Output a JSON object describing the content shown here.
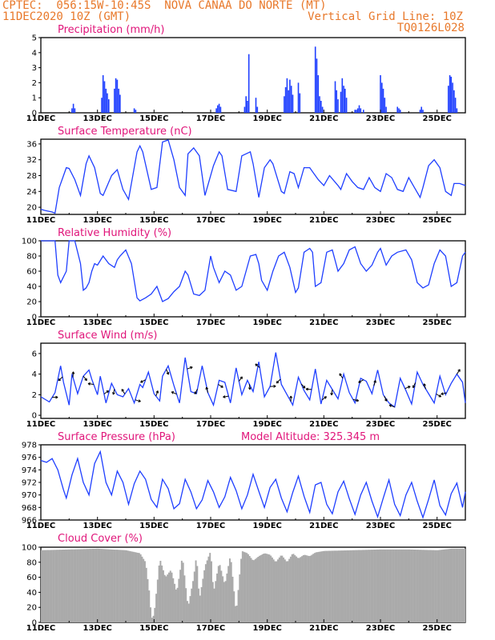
{
  "header": {
    "left_line1": "CPTEC:  056:15W-10:45S  NOVA CANAA DO NORTE (MT)",
    "left_line2": "11DEC2020 10Z (GMT)",
    "right_line2": "Vertical Grid Line: 10Z",
    "right_line3": "TQ0126L028"
  },
  "colors": {
    "header": "#e8782a",
    "title": "#e0157a",
    "series": "#1f3fff",
    "cloud": "#aaaaaa",
    "axis": "#000000"
  },
  "chart_data": [
    {
      "type": "bar",
      "title": "Precipitation (mm/h)",
      "x_tick_labels": [
        "11DEC",
        "13DEC",
        "15DEC",
        "17DEC",
        "19DEC",
        "21DEC",
        "23DEC",
        "25DEC"
      ],
      "x_range_days": [
        0,
        15
      ],
      "ylim": [
        0,
        5
      ],
      "y_ticks": [
        0,
        1,
        2,
        3,
        4,
        5
      ],
      "x": [
        1.1,
        1.15,
        1.2,
        2.15,
        2.2,
        2.25,
        2.3,
        2.35,
        2.4,
        2.6,
        2.65,
        2.7,
        2.75,
        2.8,
        3.3,
        3.35,
        6.2,
        6.25,
        6.3,
        6.35,
        7.2,
        7.25,
        7.3,
        7.35,
        7.6,
        7.65,
        8.6,
        8.65,
        8.7,
        8.75,
        8.8,
        8.85,
        8.9,
        9.1,
        9.15,
        9.7,
        9.75,
        9.8,
        9.85,
        9.9,
        9.95,
        10.4,
        10.45,
        10.5,
        10.6,
        10.65,
        10.7,
        10.75,
        10.8,
        11.1,
        11.15,
        11.2,
        11.25,
        11.3,
        11.4,
        12.0,
        12.05,
        12.1,
        12.15,
        12.2,
        12.6,
        12.65,
        12.7,
        13.4,
        13.45,
        13.5,
        14.4,
        14.45,
        14.5,
        14.55,
        14.6,
        14.65,
        14.7
      ],
      "values": [
        0.3,
        0.6,
        0.3,
        1.0,
        2.5,
        2.1,
        1.6,
        1.3,
        0.9,
        1.6,
        2.3,
        2.2,
        1.6,
        1.2,
        0.3,
        0.2,
        0.3,
        0.5,
        0.6,
        0.4,
        0.4,
        1.1,
        0.8,
        3.9,
        1.0,
        0.4,
        1.1,
        1.7,
        2.3,
        1.5,
        2.2,
        1.8,
        1.2,
        2.0,
        1.3,
        4.4,
        3.6,
        2.5,
        1.1,
        0.8,
        0.4,
        2.1,
        1.5,
        0.9,
        1.4,
        2.3,
        1.8,
        1.6,
        1.0,
        0.2,
        0.2,
        0.3,
        0.5,
        0.3,
        0.2,
        2.5,
        2.0,
        1.6,
        1.0,
        0.4,
        0.4,
        0.3,
        0.2,
        0.2,
        0.4,
        0.2,
        1.8,
        2.5,
        2.4,
        2.0,
        1.5,
        1.0,
        0.3
      ]
    },
    {
      "type": "line",
      "title": "Surface Temperature (nC)",
      "x_tick_labels": [
        "11DEC",
        "13DEC",
        "15DEC",
        "17DEC",
        "19DEC",
        "21DEC",
        "23DEC",
        "25DEC"
      ],
      "x_range_days": [
        0,
        15
      ],
      "ylim": [
        18.2,
        37.2
      ],
      "y_ticks": [
        20,
        24,
        28,
        32,
        36
      ],
      "x": [
        0,
        0.15,
        0.4,
        0.5,
        0.65,
        0.9,
        1.0,
        1.2,
        1.4,
        1.6,
        1.7,
        1.9,
        2.1,
        2.2,
        2.5,
        2.7,
        2.9,
        3.1,
        3.4,
        3.5,
        3.6,
        3.9,
        4.1,
        4.3,
        4.5,
        4.7,
        4.9,
        5.1,
        5.2,
        5.4,
        5.6,
        5.8,
        6.1,
        6.3,
        6.4,
        6.6,
        6.9,
        7.1,
        7.4,
        7.5,
        7.7,
        7.9,
        8.1,
        8.2,
        8.5,
        8.6,
        8.8,
        8.95,
        9.1,
        9.3,
        9.5,
        9.6,
        9.8,
        10.0,
        10.2,
        10.5,
        10.6,
        10.8,
        11.0,
        11.2,
        11.4,
        11.6,
        11.8,
        12.0,
        12.2,
        12.4,
        12.6,
        12.8,
        13.0,
        13.2,
        13.4,
        13.5,
        13.7,
        13.9,
        14.1,
        14.3,
        14.5,
        14.6,
        14.8,
        15.0
      ],
      "values": [
        19.5,
        19.2,
        18.8,
        18.5,
        25.0,
        30.0,
        29.8,
        27.0,
        23.0,
        31.0,
        33.0,
        30.0,
        23.5,
        23.0,
        28.0,
        29.5,
        24.5,
        22.0,
        34.0,
        35.5,
        34.0,
        24.5,
        25.0,
        36.5,
        37.0,
        32.0,
        25.0,
        23.0,
        33.5,
        35.0,
        33.0,
        23.0,
        30.5,
        34.0,
        33.0,
        24.5,
        24.0,
        33.0,
        34.0,
        31.0,
        22.5,
        30.0,
        32.0,
        31.0,
        24.0,
        23.5,
        29.0,
        28.5,
        25.0,
        30.0,
        30.0,
        29.0,
        27.0,
        25.5,
        28.0,
        25.5,
        24.5,
        28.5,
        26.5,
        25.0,
        24.5,
        27.5,
        25.0,
        24.0,
        28.5,
        27.5,
        24.5,
        24.0,
        27.5,
        25.0,
        22.5,
        25.0,
        30.5,
        32.0,
        30.0,
        24.0,
        23.0,
        26.0,
        26.0,
        25.5
      ]
    },
    {
      "type": "line",
      "title": "Relative Humidity (%)",
      "x_tick_labels": [
        "11DEC",
        "13DEC",
        "15DEC",
        "17DEC",
        "19DEC",
        "21DEC",
        "23DEC",
        "25DEC"
      ],
      "x_range_days": [
        0,
        15
      ],
      "ylim": [
        0,
        100
      ],
      "y_ticks": [
        0,
        20,
        40,
        60,
        80,
        100
      ],
      "x": [
        0,
        0.5,
        0.6,
        0.7,
        0.9,
        1.0,
        1.2,
        1.4,
        1.5,
        1.6,
        1.7,
        1.8,
        1.9,
        2.0,
        2.2,
        2.4,
        2.6,
        2.7,
        2.8,
        3.0,
        3.2,
        3.4,
        3.5,
        3.7,
        3.9,
        4.1,
        4.3,
        4.5,
        4.7,
        4.9,
        5.1,
        5.2,
        5.4,
        5.6,
        5.8,
        6.0,
        6.1,
        6.3,
        6.5,
        6.7,
        6.9,
        7.1,
        7.4,
        7.6,
        7.7,
        7.8,
        8.0,
        8.2,
        8.4,
        8.6,
        8.8,
        9.0,
        9.1,
        9.3,
        9.5,
        9.6,
        9.7,
        9.9,
        10.1,
        10.3,
        10.5,
        10.7,
        10.9,
        11.1,
        11.3,
        11.5,
        11.7,
        11.9,
        12.0,
        12.2,
        12.4,
        12.6,
        12.9,
        13.1,
        13.3,
        13.5,
        13.7,
        13.9,
        14.1,
        14.3,
        14.5,
        14.7,
        14.9,
        15.0
      ],
      "values": [
        100,
        100,
        55,
        45,
        60,
        100,
        100,
        70,
        35,
        38,
        45,
        60,
        70,
        68,
        80,
        70,
        65,
        75,
        80,
        88,
        70,
        25,
        21,
        25,
        30,
        40,
        20,
        24,
        33,
        40,
        60,
        55,
        30,
        28,
        35,
        80,
        65,
        45,
        60,
        55,
        35,
        40,
        80,
        82,
        70,
        48,
        35,
        60,
        80,
        85,
        65,
        32,
        38,
        85,
        90,
        85,
        40,
        45,
        85,
        88,
        60,
        70,
        88,
        92,
        70,
        60,
        68,
        85,
        90,
        68,
        80,
        85,
        88,
        75,
        45,
        38,
        42,
        70,
        88,
        80,
        40,
        45,
        80,
        85
      ]
    },
    {
      "type": "line",
      "title": "Surface Wind (m/s)",
      "x_tick_labels": [
        "11DEC",
        "13DEC",
        "15DEC",
        "17DEC",
        "19DEC",
        "21DEC",
        "23DEC",
        "25DEC"
      ],
      "x_range_days": [
        0,
        15
      ],
      "ylim": [
        -0.3,
        7.0
      ],
      "y_ticks": [
        0,
        2,
        4,
        6
      ],
      "x": [
        0,
        0.3,
        0.5,
        0.7,
        0.8,
        1.0,
        1.1,
        1.3,
        1.5,
        1.7,
        1.8,
        2.0,
        2.1,
        2.3,
        2.5,
        2.7,
        2.9,
        3.1,
        3.3,
        3.5,
        3.6,
        3.8,
        4.0,
        4.2,
        4.3,
        4.5,
        4.7,
        4.9,
        5.1,
        5.3,
        5.5,
        5.7,
        5.9,
        6.1,
        6.3,
        6.5,
        6.7,
        6.9,
        7.1,
        7.3,
        7.5,
        7.7,
        7.9,
        8.1,
        8.3,
        8.5,
        8.7,
        8.9,
        9.1,
        9.3,
        9.5,
        9.7,
        9.9,
        10.1,
        10.3,
        10.5,
        10.7,
        10.9,
        11.1,
        11.3,
        11.5,
        11.7,
        11.9,
        12.1,
        12.3,
        12.5,
        12.7,
        12.9,
        13.1,
        13.3,
        13.5,
        13.7,
        13.9,
        14.1,
        14.3,
        14.5,
        14.7,
        14.9,
        15.0
      ],
      "values": [
        1.8,
        1.3,
        2.2,
        4.8,
        3.2,
        1.0,
        4.0,
        2.1,
        3.8,
        4.4,
        3.5,
        2.0,
        3.8,
        1.2,
        3.1,
        2.0,
        1.8,
        2.6,
        1.2,
        3.0,
        2.7,
        4.2,
        2.1,
        1.4,
        3.8,
        4.8,
        2.9,
        1.2,
        5.6,
        2.3,
        2.1,
        4.8,
        2.2,
        1.0,
        3.4,
        3.2,
        1.2,
        4.6,
        2.0,
        3.4,
        2.3,
        5.2,
        1.8,
        2.8,
        6.1,
        3.0,
        2.0,
        1.0,
        3.7,
        2.4,
        1.5,
        4.5,
        1.1,
        3.4,
        2.5,
        1.6,
        4.0,
        2.2,
        1.2,
        3.6,
        3.3,
        2.1,
        4.4,
        2.0,
        1.2,
        0.8,
        3.6,
        2.4,
        1.1,
        4.2,
        3.0,
        2.1,
        1.2,
        3.8,
        2.0,
        3.1,
        4.0,
        3.2,
        1.2
      ],
      "arrow_count": 40
    },
    {
      "type": "line",
      "title": "Surface Pressure (hPa)",
      "annotation": "Model Altitude: 325.345 m",
      "x_tick_labels": [
        "11DEC",
        "13DEC",
        "15DEC",
        "17DEC",
        "19DEC",
        "21DEC",
        "23DEC",
        "25DEC"
      ],
      "x_range_days": [
        0,
        15
      ],
      "ylim": [
        966,
        978
      ],
      "y_ticks": [
        966,
        968,
        970,
        972,
        974,
        976,
        978
      ],
      "x": [
        0,
        0.2,
        0.4,
        0.6,
        0.8,
        0.9,
        1.1,
        1.3,
        1.5,
        1.7,
        1.9,
        2.1,
        2.3,
        2.5,
        2.7,
        2.9,
        3.1,
        3.3,
        3.5,
        3.7,
        3.9,
        4.1,
        4.3,
        4.5,
        4.7,
        4.9,
        5.1,
        5.3,
        5.5,
        5.7,
        5.9,
        6.1,
        6.3,
        6.5,
        6.7,
        6.9,
        7.1,
        7.3,
        7.5,
        7.7,
        7.9,
        8.1,
        8.3,
        8.5,
        8.7,
        8.9,
        9.1,
        9.3,
        9.5,
        9.7,
        9.9,
        10.1,
        10.3,
        10.5,
        10.7,
        10.9,
        11.1,
        11.3,
        11.5,
        11.7,
        11.9,
        12.1,
        12.3,
        12.5,
        12.7,
        12.9,
        13.1,
        13.3,
        13.5,
        13.7,
        13.9,
        14.1,
        14.3,
        14.5,
        14.7,
        14.9,
        15.0
      ],
      "values": [
        975.5,
        975.2,
        975.8,
        974.0,
        970.8,
        969.5,
        973.2,
        975.8,
        972.0,
        970.0,
        975.0,
        976.9,
        972.0,
        970.0,
        973.8,
        972.0,
        968.5,
        971.8,
        973.8,
        972.5,
        969.3,
        968.0,
        972.5,
        971.0,
        967.8,
        968.6,
        972.5,
        970.5,
        967.8,
        969.2,
        972.3,
        970.5,
        968.0,
        969.7,
        972.8,
        970.7,
        967.8,
        970.0,
        973.3,
        970.6,
        968.0,
        971.2,
        972.5,
        969.5,
        967.3,
        970.4,
        973.0,
        969.8,
        967.2,
        971.6,
        972.0,
        968.5,
        967.0,
        970.5,
        972.2,
        969.4,
        966.9,
        970.0,
        972.0,
        969.0,
        966.5,
        969.5,
        972.4,
        968.5,
        966.7,
        970.0,
        972.0,
        969.0,
        966.4,
        969.3,
        972.4,
        968.3,
        966.8,
        970.2,
        971.9,
        968.0,
        970.5
      ]
    },
    {
      "type": "area",
      "title": "Cloud Cover (%)",
      "x_tick_labels": [
        "11DEC",
        "13DEC",
        "15DEC",
        "17DEC",
        "19DEC",
        "21DEC",
        "23DEC",
        "25DEC"
      ],
      "x_range_days": [
        0,
        15
      ],
      "ylim": [
        0,
        100
      ],
      "y_ticks": [
        0,
        20,
        40,
        60,
        80,
        100
      ],
      "x": [
        0,
        1.0,
        2.0,
        2.5,
        3.0,
        3.5,
        3.7,
        3.85,
        3.9,
        4.0,
        4.2,
        4.4,
        4.6,
        4.8,
        5.0,
        5.2,
        5.4,
        5.5,
        5.6,
        5.8,
        6.0,
        6.1,
        6.3,
        6.5,
        6.7,
        6.9,
        7.1,
        7.3,
        7.5,
        7.7,
        7.9,
        8.1,
        8.3,
        8.5,
        8.7,
        8.9,
        9.1,
        9.3,
        9.5,
        9.7,
        10.0,
        11.0,
        12.0,
        13.0,
        14.0,
        14.5,
        15.0
      ],
      "values": [
        96,
        97,
        98,
        97,
        96,
        92,
        80,
        35,
        5,
        10,
        85,
        60,
        70,
        40,
        88,
        20,
        60,
        90,
        30,
        75,
        95,
        40,
        80,
        50,
        90,
        12,
        95,
        92,
        82,
        88,
        92,
        90,
        80,
        90,
        80,
        92,
        85,
        90,
        88,
        93,
        95,
        96,
        97,
        97,
        96,
        98,
        98
      ]
    }
  ]
}
